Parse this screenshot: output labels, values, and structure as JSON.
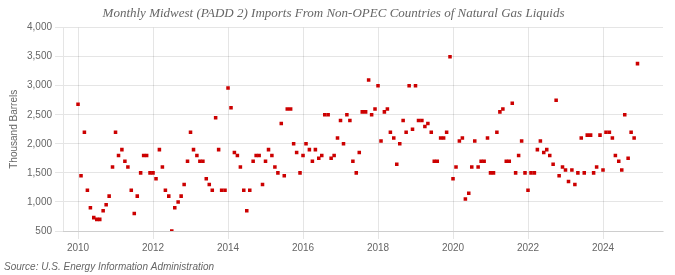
{
  "chart_data": {
    "type": "scatter",
    "title": "Monthly Midwest (PADD 2) Imports From Non-OPEC Countries of Natural Gas Liquids",
    "ylabel": "Thousand Barrels",
    "source": "Source: U.S. Energy Information Administration",
    "color": "#cc0000",
    "marker": "square",
    "grid": true,
    "xlim": [
      2009.6,
      2025.6
    ],
    "xticks": [
      2010,
      2012,
      2014,
      2016,
      2018,
      2020,
      2022,
      2024
    ],
    "ylim": [
      500,
      4000
    ],
    "yticks": [
      500,
      {
        "value": 1000,
        "label": "1,000"
      },
      {
        "value": 1500,
        "label": "1,500"
      },
      {
        "value": 2000,
        "label": "2,000"
      },
      {
        "value": 2500,
        "label": "2,500"
      },
      {
        "value": 3000,
        "label": "3,000"
      },
      {
        "value": 3500,
        "label": "3,500"
      },
      {
        "value": 4000,
        "label": "4,000"
      }
    ],
    "x": [
      2010.0,
      2010.08,
      2010.17,
      2010.25,
      2010.33,
      2010.42,
      2010.5,
      2010.58,
      2010.67,
      2010.75,
      2010.83,
      2010.92,
      2011.0,
      2011.08,
      2011.17,
      2011.25,
      2011.33,
      2011.42,
      2011.5,
      2011.58,
      2011.67,
      2011.75,
      2011.83,
      2011.92,
      2012.0,
      2012.08,
      2012.17,
      2012.25,
      2012.33,
      2012.42,
      2012.5,
      2012.58,
      2012.67,
      2012.75,
      2012.83,
      2012.92,
      2013.0,
      2013.08,
      2013.17,
      2013.25,
      2013.33,
      2013.42,
      2013.5,
      2013.58,
      2013.67,
      2013.75,
      2013.83,
      2013.92,
      2014.0,
      2014.08,
      2014.17,
      2014.25,
      2014.33,
      2014.42,
      2014.5,
      2014.58,
      2014.67,
      2014.75,
      2014.83,
      2014.92,
      2015.0,
      2015.08,
      2015.17,
      2015.25,
      2015.33,
      2015.42,
      2015.5,
      2015.58,
      2015.67,
      2015.75,
      2015.83,
      2015.92,
      2016.0,
      2016.08,
      2016.17,
      2016.25,
      2016.33,
      2016.42,
      2016.5,
      2016.58,
      2016.67,
      2016.75,
      2016.83,
      2016.92,
      2017.0,
      2017.08,
      2017.17,
      2017.25,
      2017.33,
      2017.42,
      2017.5,
      2017.58,
      2017.67,
      2017.75,
      2017.83,
      2017.92,
      2018.0,
      2018.08,
      2018.17,
      2018.25,
      2018.33,
      2018.42,
      2018.5,
      2018.58,
      2018.67,
      2018.75,
      2018.83,
      2018.92,
      2019.0,
      2019.08,
      2019.17,
      2019.25,
      2019.33,
      2019.42,
      2019.5,
      2019.58,
      2019.67,
      2019.75,
      2019.83,
      2019.92,
      2020.0,
      2020.08,
      2020.17,
      2020.25,
      2020.33,
      2020.42,
      2020.5,
      2020.58,
      2020.67,
      2020.75,
      2020.83,
      2020.92,
      2021.0,
      2021.08,
      2021.17,
      2021.25,
      2021.33,
      2021.42,
      2021.5,
      2021.58,
      2021.67,
      2021.75,
      2021.83,
      2021.92,
      2022.0,
      2022.08,
      2022.17,
      2022.25,
      2022.33,
      2022.42,
      2022.5,
      2022.58,
      2022.67,
      2022.75,
      2022.83,
      2022.92,
      2023.0,
      2023.08,
      2023.17,
      2023.25,
      2023.33,
      2023.42,
      2023.5,
      2023.58,
      2023.67,
      2023.75,
      2023.83,
      2023.92,
      2024.0,
      2024.08,
      2024.17,
      2024.25,
      2024.33,
      2024.42,
      2024.5,
      2024.58,
      2024.67,
      2024.75,
      2024.83,
      2024.92
    ],
    "values": [
      2680,
      1450,
      2200,
      1200,
      900,
      730,
      700,
      700,
      850,
      950,
      1100,
      1600,
      2200,
      1800,
      1900,
      1700,
      1600,
      1200,
      800,
      1100,
      1500,
      1800,
      1800,
      1500,
      1500,
      1400,
      1900,
      1600,
      1200,
      1100,
      500,
      900,
      1000,
      1100,
      1300,
      1700,
      2200,
      1900,
      1800,
      1700,
      1700,
      1400,
      1300,
      1200,
      2450,
      1900,
      1200,
      1200,
      2960,
      2620,
      1850,
      1800,
      1600,
      1200,
      850,
      1200,
      1700,
      1800,
      1800,
      1300,
      1700,
      1900,
      1800,
      1600,
      1500,
      2350,
      1450,
      2600,
      2600,
      2000,
      1850,
      1500,
      1800,
      2000,
      1900,
      1700,
      1900,
      1750,
      1800,
      2500,
      2500,
      1750,
      1800,
      2100,
      2400,
      2000,
      2500,
      2400,
      1700,
      1500,
      1850,
      2550,
      2550,
      3100,
      2500,
      2600,
      3000,
      2050,
      2550,
      2600,
      2200,
      2100,
      1650,
      2000,
      2400,
      2200,
      3000,
      2250,
      3000,
      2400,
      2400,
      2300,
      2350,
      2200,
      1700,
      1700,
      2100,
      2100,
      2200,
      3500,
      1400,
      1600,
      2050,
      2100,
      1050,
      1150,
      1600,
      2050,
      1600,
      1700,
      1700,
      2100,
      1500,
      1500,
      2200,
      2550,
      2600,
      1700,
      1700,
      2700,
      1500,
      1800,
      2050,
      1500,
      1200,
      1500,
      1500,
      1900,
      2050,
      1850,
      1900,
      1800,
      1650,
      2750,
      1450,
      1600,
      1550,
      1350,
      1550,
      1300,
      1500,
      2100,
      1500,
      2150,
      2150,
      1500,
      1600,
      2150,
      1550,
      2200,
      2200,
      2100,
      1800,
      1700,
      1550,
      2500,
      1750,
      2200,
      2100,
      3380
    ]
  }
}
